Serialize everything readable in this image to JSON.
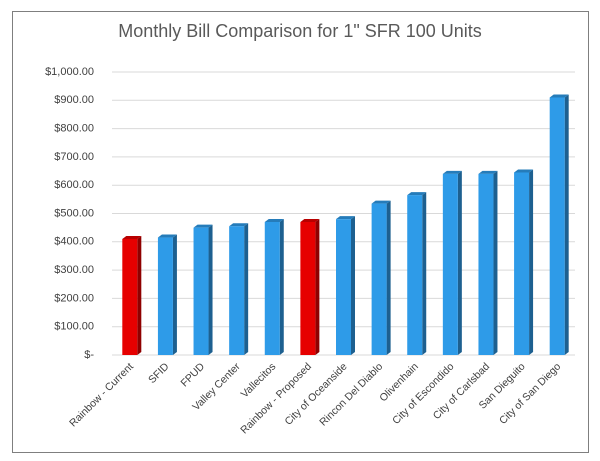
{
  "chart_data": {
    "type": "bar",
    "title": "Monthly Bill Comparison for 1\" SFR 100 Units",
    "categories": [
      "Rainbow - Current",
      "SFID",
      "FPUD",
      "Valley Center",
      "Vallecitos",
      "Rainbow - Proposed",
      "City of Oceanside",
      "Rincon Del Diablo",
      "Olivenhain",
      "City of Escondido",
      "City of Carlsbad",
      "San Dieguito",
      "City of San Diego"
    ],
    "values": [
      410,
      415,
      450,
      455,
      470,
      470,
      480,
      535,
      565,
      640,
      640,
      645,
      910
    ],
    "colors": [
      "#e60000",
      "#2e9be8",
      "#2e9be8",
      "#2e9be8",
      "#2e9be8",
      "#e60000",
      "#2e9be8",
      "#2e9be8",
      "#2e9be8",
      "#2e9be8",
      "#2e9be8",
      "#2e9be8",
      "#2e9be8"
    ],
    "ylim": [
      0,
      1000
    ],
    "yticks": [
      {
        "value": 0,
        "label": "$-"
      },
      {
        "value": 100,
        "label": "$100.00"
      },
      {
        "value": 200,
        "label": "$200.00"
      },
      {
        "value": 300,
        "label": "$300.00"
      },
      {
        "value": 400,
        "label": "$400.00"
      },
      {
        "value": 500,
        "label": "$500.00"
      },
      {
        "value": 600,
        "label": "$600.00"
      },
      {
        "value": 700,
        "label": "$700.00"
      },
      {
        "value": 800,
        "label": "$800.00"
      },
      {
        "value": 900,
        "label": "$900.00"
      },
      {
        "value": 1000,
        "label": "$1,000.00"
      }
    ],
    "grid": true
  }
}
